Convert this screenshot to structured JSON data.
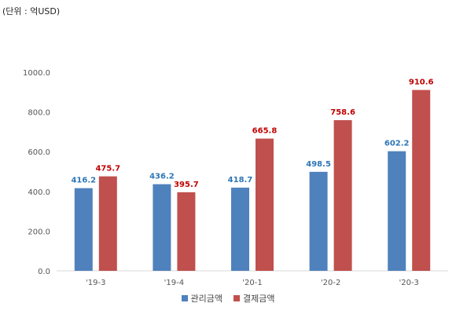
{
  "unit_label": "(단위 : 억USD)",
  "chart_data": {
    "type": "bar",
    "categories": [
      "'19-3",
      "'19-4",
      "'20-1",
      "'20-2",
      "'20-3"
    ],
    "series": [
      {
        "name": "관리금액",
        "values": [
          416.2,
          436.2,
          418.7,
          498.5,
          602.2
        ],
        "color": "#4F81BD",
        "label_color": "#2E75B6"
      },
      {
        "name": "결제금액",
        "values": [
          475.7,
          395.7,
          665.8,
          758.6,
          910.6
        ],
        "color": "#C0504D",
        "label_color": "#C00000"
      }
    ],
    "yticks": [
      "0.0",
      "200.0",
      "400.0",
      "600.0",
      "800.0",
      "1000.0"
    ],
    "ylim": [
      0,
      1000
    ],
    "grid": false,
    "legend": "bottom"
  }
}
